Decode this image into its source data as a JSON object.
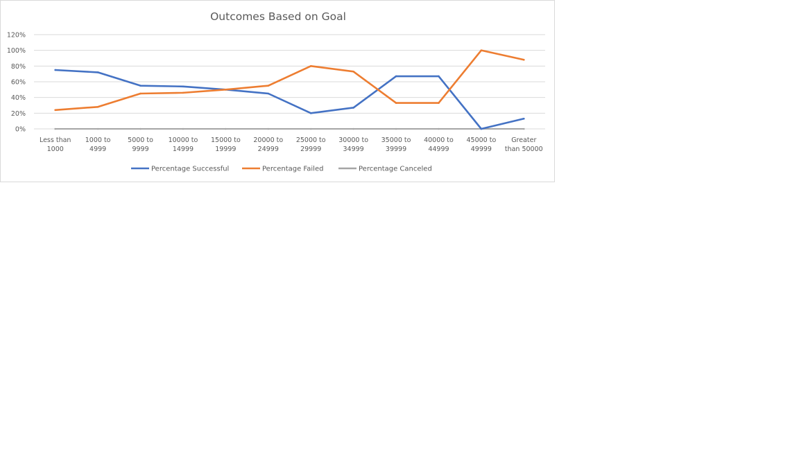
{
  "chart_data": {
    "type": "line",
    "title": "Outcomes Based on Goal",
    "xlabel": "",
    "ylabel": "",
    "categories": [
      [
        "Less than",
        "1000"
      ],
      [
        "1000 to",
        "4999"
      ],
      [
        "5000 to",
        "9999"
      ],
      [
        "10000 to",
        "14999"
      ],
      [
        "15000 to",
        "19999"
      ],
      [
        "20000 to",
        "24999"
      ],
      [
        "25000 to",
        "29999"
      ],
      [
        "30000 to",
        "34999"
      ],
      [
        "35000 to",
        "39999"
      ],
      [
        "40000 to",
        "44999"
      ],
      [
        "45000 to",
        "49999"
      ],
      [
        "Greater",
        "than 50000"
      ]
    ],
    "ylim": [
      0,
      1.2
    ],
    "yticks": [
      0,
      0.2,
      0.4,
      0.6,
      0.8,
      1.0,
      1.2
    ],
    "ytick_labels": [
      "0%",
      "20%",
      "40%",
      "60%",
      "80%",
      "100%",
      "120%"
    ],
    "grid": true,
    "legend_position": "bottom",
    "series": [
      {
        "name": "Percentage Successful",
        "color": "#4472c4",
        "values": [
          0.75,
          0.72,
          0.55,
          0.54,
          0.5,
          0.45,
          0.2,
          0.27,
          0.67,
          0.67,
          0.0,
          0.13
        ]
      },
      {
        "name": "Percentage Failed",
        "color": "#ed7d31",
        "values": [
          0.24,
          0.28,
          0.45,
          0.46,
          0.5,
          0.55,
          0.8,
          0.73,
          0.33,
          0.33,
          1.0,
          0.88
        ]
      },
      {
        "name": "Percentage Canceled",
        "color": "#a5a5a5",
        "values": [
          0,
          0,
          0,
          0,
          0,
          0,
          0,
          0,
          0,
          0,
          0,
          0
        ]
      }
    ]
  }
}
